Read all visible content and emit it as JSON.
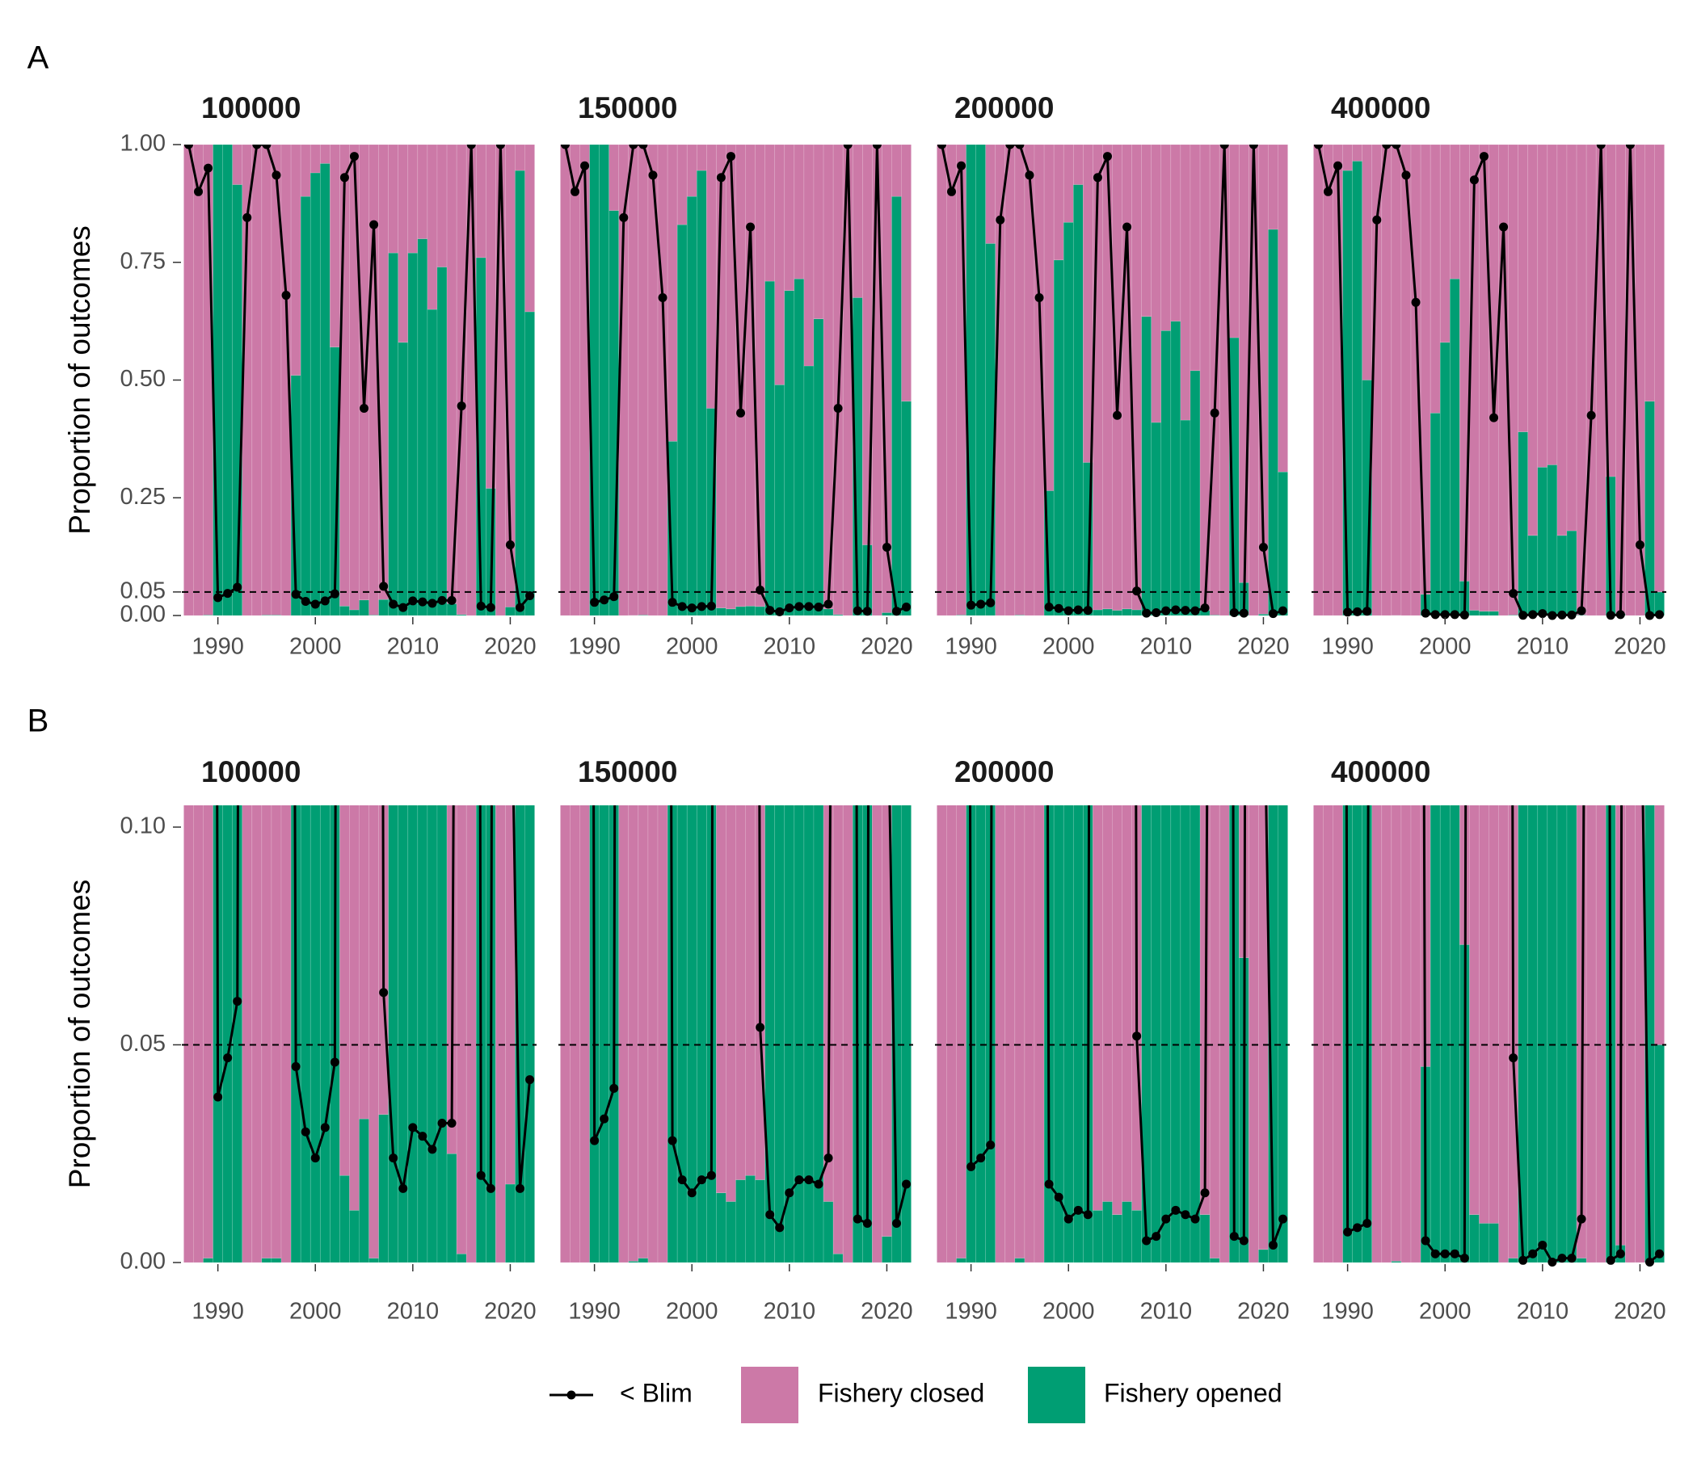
{
  "chart_data": {
    "type": "bar",
    "stacked": true,
    "ylabel": "Proportion of outcomes",
    "x": [
      1987,
      1988,
      1989,
      1990,
      1991,
      1992,
      1993,
      1994,
      1995,
      1996,
      1997,
      1998,
      1999,
      2000,
      2001,
      2002,
      2003,
      2004,
      2005,
      2006,
      2007,
      2008,
      2009,
      2010,
      2011,
      2012,
      2013,
      2014,
      2015,
      2016,
      2017,
      2018,
      2019,
      2020,
      2021,
      2022
    ],
    "xlim": [
      1986.3,
      2022.7
    ],
    "xticks": [
      1990,
      2000,
      2010,
      2020
    ],
    "reference_line": 0.05,
    "series": [
      {
        "name": "< Blim",
        "type": "line",
        "color": "#000000"
      },
      {
        "name": "Fishery closed",
        "type": "bar",
        "color": "#cc79a7"
      },
      {
        "name": "Fishery opened",
        "type": "bar",
        "color": "#009e73"
      }
    ],
    "rows": [
      {
        "label": "A",
        "ylim": [
          0,
          1
        ],
        "yticks": [
          {
            "value": 0,
            "label": "0.00"
          },
          {
            "value": 0.05,
            "label": "0.05"
          },
          {
            "value": 0.25,
            "label": "0.25"
          },
          {
            "value": 0.5,
            "label": "0.50"
          },
          {
            "value": 0.75,
            "label": "0.75"
          },
          {
            "value": 1,
            "label": "1.00"
          }
        ]
      },
      {
        "label": "B",
        "ylim": [
          0,
          0.105
        ],
        "yticks": [
          {
            "value": 0,
            "label": "0.00"
          },
          {
            "value": 0.05,
            "label": "0.05"
          },
          {
            "value": 0.1,
            "label": "0.10"
          }
        ]
      }
    ],
    "panels": [
      {
        "title": "100000",
        "series": [
          {
            "values": [
              1,
              0.9,
              0.95,
              0.038,
              0.047,
              0.06,
              0.845,
              1,
              1,
              0.935,
              0.68,
              0.045,
              0.03,
              0.024,
              0.031,
              0.046,
              0.93,
              0.975,
              0.44,
              0.83,
              0.062,
              0.024,
              0.017,
              0.031,
              0.029,
              0.026,
              0.032,
              0.032,
              0.445,
              1,
              0.02,
              0.017,
              1,
              0.15,
              0.017,
              0.042
            ]
          },
          {
            "values": [
              1,
              1,
              0.999,
              0,
              0,
              0.085,
              1,
              1,
              0.999,
              0.999,
              1,
              0.49,
              0.11,
              0.06,
              0.04,
              0.43,
              0.98,
              0.988,
              0.967,
              0.999,
              0.966,
              0.23,
              0.42,
              0.23,
              0.2,
              0.35,
              0.26,
              0.975,
              0.998,
              1,
              0.24,
              0.73,
              1,
              0.982,
              0.055,
              0.355
            ]
          },
          {
            "values": [
              0,
              0,
              0.001,
              1,
              1,
              0.915,
              0,
              0,
              0.001,
              0.001,
              0,
              0.51,
              0.89,
              0.94,
              0.96,
              0.57,
              0.02,
              0.012,
              0.033,
              0.001,
              0.034,
              0.77,
              0.58,
              0.77,
              0.8,
              0.65,
              0.74,
              0.025,
              0.002,
              0,
              0.76,
              0.27,
              0,
              0.018,
              0.945,
              0.645
            ]
          }
        ]
      },
      {
        "title": "150000",
        "series": [
          {
            "values": [
              1,
              0.9,
              0.955,
              0.028,
              0.033,
              0.04,
              0.845,
              1,
              1,
              0.935,
              0.675,
              0.028,
              0.019,
              0.016,
              0.019,
              0.02,
              0.93,
              0.975,
              0.43,
              0.825,
              0.054,
              0.011,
              0.008,
              0.016,
              0.019,
              0.019,
              0.018,
              0.024,
              0.44,
              1,
              0.01,
              0.009,
              1,
              0.145,
              0.009,
              0.018
            ]
          },
          {
            "values": [
              1,
              1,
              1,
              0,
              0,
              0.14,
              1,
              0.9997,
              0.999,
              1,
              1,
              0.63,
              0.17,
              0.11,
              0.055,
              0.56,
              0.984,
              0.986,
              0.981,
              0.98,
              0.981,
              0.29,
              0.51,
              0.31,
              0.285,
              0.47,
              0.37,
              0.986,
              0.998,
              1,
              0.325,
              0.85,
              1,
              0.994,
              0.11,
              0.545
            ]
          },
          {
            "values": [
              0,
              0,
              0,
              1,
              1,
              0.86,
              0,
              0.0003,
              0.001,
              0,
              0,
              0.37,
              0.83,
              0.89,
              0.945,
              0.44,
              0.016,
              0.014,
              0.019,
              0.02,
              0.019,
              0.71,
              0.49,
              0.69,
              0.715,
              0.53,
              0.63,
              0.014,
              0.002,
              0,
              0.675,
              0.15,
              0,
              0.006,
              0.89,
              0.455
            ]
          }
        ]
      },
      {
        "title": "200000",
        "series": [
          {
            "values": [
              1,
              0.9,
              0.955,
              0.022,
              0.024,
              0.027,
              0.84,
              1,
              1,
              0.935,
              0.675,
              0.018,
              0.015,
              0.01,
              0.012,
              0.011,
              0.93,
              0.975,
              0.425,
              0.825,
              0.052,
              0.005,
              0.006,
              0.01,
              0.012,
              0.011,
              0.01,
              0.016,
              0.43,
              1,
              0.006,
              0.005,
              1,
              0.145,
              0.004,
              0.01
            ]
          },
          {
            "values": [
              1,
              1,
              0.999,
              0,
              0,
              0.21,
              1,
              1,
              0.999,
              1,
              1,
              0.735,
              0.245,
              0.165,
              0.085,
              0.675,
              0.988,
              0.986,
              0.989,
              0.986,
              0.988,
              0.365,
              0.59,
              0.395,
              0.375,
              0.585,
              0.48,
              0.989,
              0.999,
              1,
              0.41,
              0.93,
              1,
              0.997,
              0.18,
              0.695
            ]
          },
          {
            "values": [
              0,
              0,
              0.001,
              1,
              1,
              0.79,
              0,
              0,
              0.001,
              0,
              0,
              0.265,
              0.755,
              0.835,
              0.915,
              0.325,
              0.012,
              0.014,
              0.011,
              0.014,
              0.012,
              0.635,
              0.41,
              0.605,
              0.625,
              0.415,
              0.52,
              0.011,
              0.001,
              0,
              0.59,
              0.07,
              0,
              0.003,
              0.82,
              0.305
            ]
          }
        ]
      },
      {
        "title": "400000",
        "series": [
          {
            "values": [
              1,
              0.9,
              0.955,
              0.007,
              0.008,
              0.009,
              0.84,
              1,
              1,
              0.935,
              0.665,
              0.005,
              0.002,
              0.002,
              0.002,
              0.001,
              0.925,
              0.975,
              0.42,
              0.825,
              0.047,
              0.0005,
              0.002,
              0.004,
              0.0001,
              0.001,
              0.001,
              0.01,
              0.425,
              1,
              0.0005,
              0.002,
              1,
              0.15,
              0.0001,
              0.002
            ]
          },
          {
            "values": [
              1,
              1,
              1,
              0.055,
              0.035,
              0.5,
              1,
              1,
              0.9997,
              1,
              1,
              0.955,
              0.57,
              0.42,
              0.285,
              0.927,
              0.989,
              0.991,
              0.991,
              1,
              0.999,
              0.61,
              0.83,
              0.685,
              0.68,
              0.83,
              0.82,
              0.999,
              1,
              1,
              0.705,
              0.996,
              1,
              1,
              0.545,
              0.95
            ]
          },
          {
            "values": [
              0,
              0,
              0,
              0.945,
              0.965,
              0.5,
              0,
              0,
              0.0003,
              0,
              0,
              0.045,
              0.43,
              0.58,
              0.715,
              0.073,
              0.011,
              0.009,
              0.009,
              0,
              0.001,
              0.39,
              0.17,
              0.315,
              0.32,
              0.17,
              0.18,
              0.001,
              0,
              0,
              0.295,
              0.004,
              0,
              0,
              0.455,
              0.05
            ]
          }
        ]
      }
    ]
  }
}
